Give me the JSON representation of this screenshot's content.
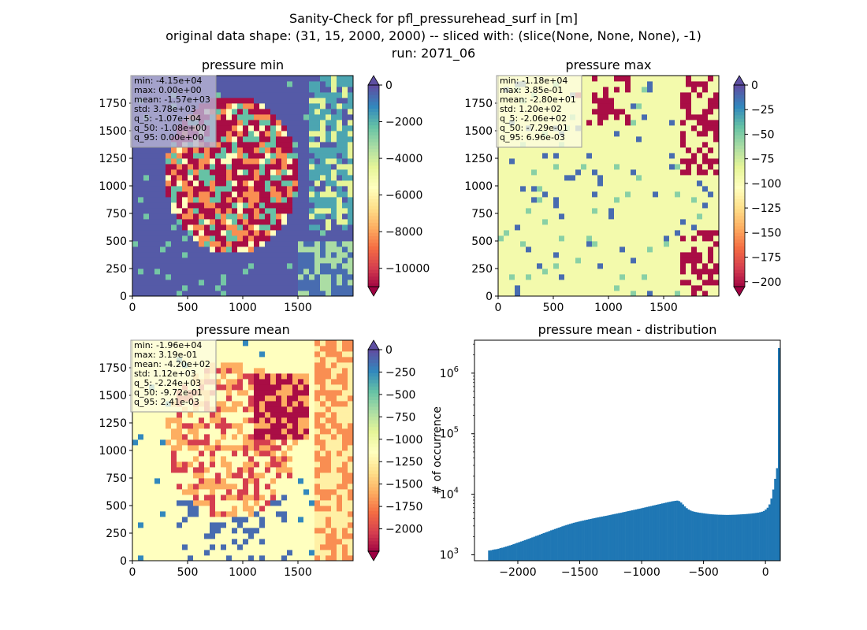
{
  "figure": {
    "suptitle_line1": "Sanity-Check for pfl_pressurehead_surf in [m]",
    "suptitle_line2": "original data shape: (31, 15, 2000, 2000) -- sliced with: (slice(None, None, None), -1)",
    "suptitle_line3": "run: 2071_06"
  },
  "colormap": {
    "name": "Spectral",
    "stops": [
      "#9e0142",
      "#d53e4f",
      "#f46d43",
      "#fdae61",
      "#fee08b",
      "#ffffbf",
      "#e6f598",
      "#abdda4",
      "#66c2a5",
      "#3288bd",
      "#5e4fa2"
    ],
    "hist_color": "#1f77b4"
  },
  "chart_data": [
    {
      "type": "heatmap",
      "title": "pressure min",
      "xticks": [
        "0",
        "500",
        "1000",
        "1500"
      ],
      "yticks": [
        "0",
        "250",
        "500",
        "750",
        "1000",
        "1250",
        "1500",
        "1750"
      ],
      "xlim": [
        0,
        2000
      ],
      "ylim": [
        0,
        2000
      ],
      "colorbar": {
        "range": [
          -11000,
          0
        ],
        "ticks": [
          0,
          -2000,
          -4000,
          -6000,
          -8000,
          -10000
        ],
        "tick_labels": [
          "0",
          "−2000",
          "−4000",
          "−6000",
          "−8000",
          "−10000"
        ],
        "extend": "both"
      },
      "stats": [
        "min: -4.15e+04",
        "max: 0.00e+00",
        "mean: -1.57e+03",
        "std: 3.78e+03",
        "q_5: -1.07e+04",
        "q_50: -1.08e+00",
        "q_95: 0.00e+00"
      ],
      "stats_box": "#b8b4d4"
    },
    {
      "type": "heatmap",
      "title": "pressure max",
      "xticks": [
        "0",
        "500",
        "1000",
        "1500"
      ],
      "yticks": [
        "0",
        "250",
        "500",
        "750",
        "1000",
        "1250",
        "1500",
        "1750"
      ],
      "xlim": [
        0,
        2000
      ],
      "ylim": [
        0,
        2000
      ],
      "colorbar": {
        "range": [
          -205,
          0
        ],
        "ticks": [
          0,
          -25,
          -50,
          -75,
          -100,
          -125,
          -150,
          -175,
          -200
        ],
        "tick_labels": [
          "0",
          "−25",
          "−50",
          "−75",
          "−100",
          "−125",
          "−150",
          "−175",
          "−200"
        ],
        "extend": "both"
      },
      "stats": [
        "min: -1.18e+04",
        "max: 3.85e-01",
        "mean: -2.80e+01",
        "std: 1.20e+02",
        "q_5: -2.06e+02",
        "q_50: -7.29e-01",
        "q_95: 6.96e-03"
      ],
      "stats_box": "#fdfde0"
    },
    {
      "type": "heatmap",
      "title": "pressure mean",
      "xticks": [
        "0",
        "500",
        "1000",
        "1500"
      ],
      "yticks": [
        "0",
        "250",
        "500",
        "750",
        "1000",
        "1250",
        "1500",
        "1750"
      ],
      "xlim": [
        0,
        2000
      ],
      "ylim": [
        0,
        2000
      ],
      "colorbar": {
        "range": [
          -2250,
          0
        ],
        "ticks": [
          0,
          -250,
          -500,
          -750,
          -1000,
          -1250,
          -1500,
          -1750,
          -2000
        ],
        "tick_labels": [
          "0",
          "−250",
          "−500",
          "−750",
          "−1000",
          "−1250",
          "−1500",
          "−1750",
          "−2000"
        ],
        "extend": "both"
      },
      "stats": [
        "min: -1.96e+04",
        "max: 3.19e-01",
        "mean: -4.20e+02",
        "std: 1.12e+03",
        "q_5: -2.24e+03",
        "q_50: -9.72e-01",
        "q_95: 2.41e-03"
      ],
      "stats_box": "#fdfde0"
    },
    {
      "type": "bar",
      "title": "pressure mean - distribution",
      "ylabel": "# of occurrence",
      "xlabel": "",
      "yscale": "log",
      "xlim": [
        -2350,
        120
      ],
      "ylim": [
        800,
        3500000
      ],
      "xticks": [
        -2000,
        -1500,
        -1000,
        -500,
        0
      ],
      "xtick_labels": [
        "−2000",
        "−1500",
        "−1000",
        "−500",
        "0"
      ],
      "yticks": [
        1000,
        10000,
        100000,
        1000000
      ],
      "ytick_base": "10",
      "ytick_exponents": [
        "3",
        "4",
        "5",
        "6"
      ],
      "bin_width": 15.2,
      "bins_start": -2240,
      "values": [
        1180,
        1190,
        1210,
        1230,
        1240,
        1260,
        1290,
        1310,
        1340,
        1370,
        1400,
        1430,
        1460,
        1500,
        1540,
        1580,
        1620,
        1660,
        1700,
        1750,
        1790,
        1840,
        1890,
        1940,
        1990,
        2050,
        2100,
        2160,
        2220,
        2280,
        2340,
        2400,
        2470,
        2540,
        2600,
        2670,
        2740,
        2810,
        2880,
        2960,
        3030,
        3100,
        3170,
        3240,
        3310,
        3380,
        3440,
        3500,
        3560,
        3620,
        3680,
        3740,
        3800,
        3860,
        3920,
        3980,
        4040,
        4100,
        4160,
        4220,
        4280,
        4340,
        4400,
        4460,
        4530,
        4600,
        4670,
        4740,
        4810,
        4880,
        4950,
        5030,
        5110,
        5190,
        5270,
        5350,
        5440,
        5520,
        5610,
        5700,
        5790,
        5880,
        5980,
        6080,
        6180,
        6280,
        6380,
        6490,
        6600,
        6710,
        6820,
        6930,
        7050,
        7160,
        7280,
        7400,
        7510,
        7620,
        7720,
        7800,
        7860,
        7700,
        7300,
        6800,
        6300,
        5900,
        5600,
        5400,
        5250,
        5150,
        5080,
        5000,
        4950,
        4900,
        4850,
        4800,
        4760,
        4720,
        4690,
        4660,
        4640,
        4620,
        4600,
        4590,
        4580,
        4570,
        4560,
        4560,
        4570,
        4580,
        4590,
        4600,
        4620,
        4640,
        4660,
        4680,
        4700,
        4730,
        4760,
        4790,
        4830,
        4870,
        4920,
        4980,
        5050,
        5150,
        5300,
        5600,
        6000,
        6800,
        8500,
        12000,
        18000,
        27000,
        2600000
      ]
    }
  ]
}
